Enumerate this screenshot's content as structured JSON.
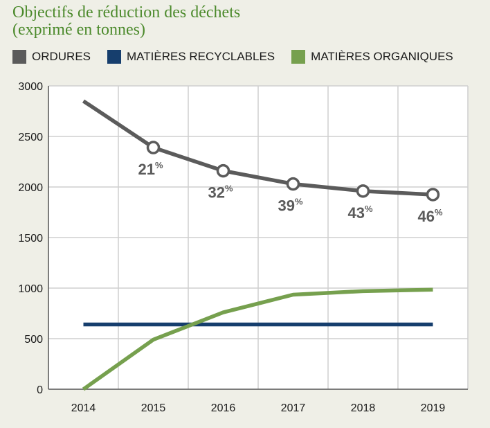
{
  "chart_data": {
    "type": "line",
    "title_lines": [
      "Objectifs de réduction des déchets",
      "(exprimé en tonnes)"
    ],
    "x": [
      "2014",
      "2015",
      "2016",
      "2017",
      "2018",
      "2019"
    ],
    "yticks": [
      "0",
      "500",
      "1000",
      "1500",
      "2000",
      "2500",
      "3000"
    ],
    "ylim": [
      0,
      3000
    ],
    "grid": true,
    "legend_position": "top-left",
    "series": [
      {
        "name": "ORDURES",
        "color": "#5b5b5b",
        "values": [
          2850,
          2390,
          2160,
          2030,
          1960,
          1925
        ],
        "markers": [
          false,
          true,
          true,
          true,
          true,
          true
        ],
        "labels": [
          "",
          "21",
          "32",
          "39",
          "43",
          "46"
        ],
        "label_suffix": "%"
      },
      {
        "name": "MATIÈRES RECYCLABLES",
        "color": "#163e6d",
        "values": [
          640,
          640,
          640,
          640,
          640,
          640
        ]
      },
      {
        "name": "MATIÈRES ORGANIQUES",
        "color": "#76a04e",
        "values": [
          0,
          490,
          760,
          935,
          970,
          985
        ]
      }
    ]
  }
}
